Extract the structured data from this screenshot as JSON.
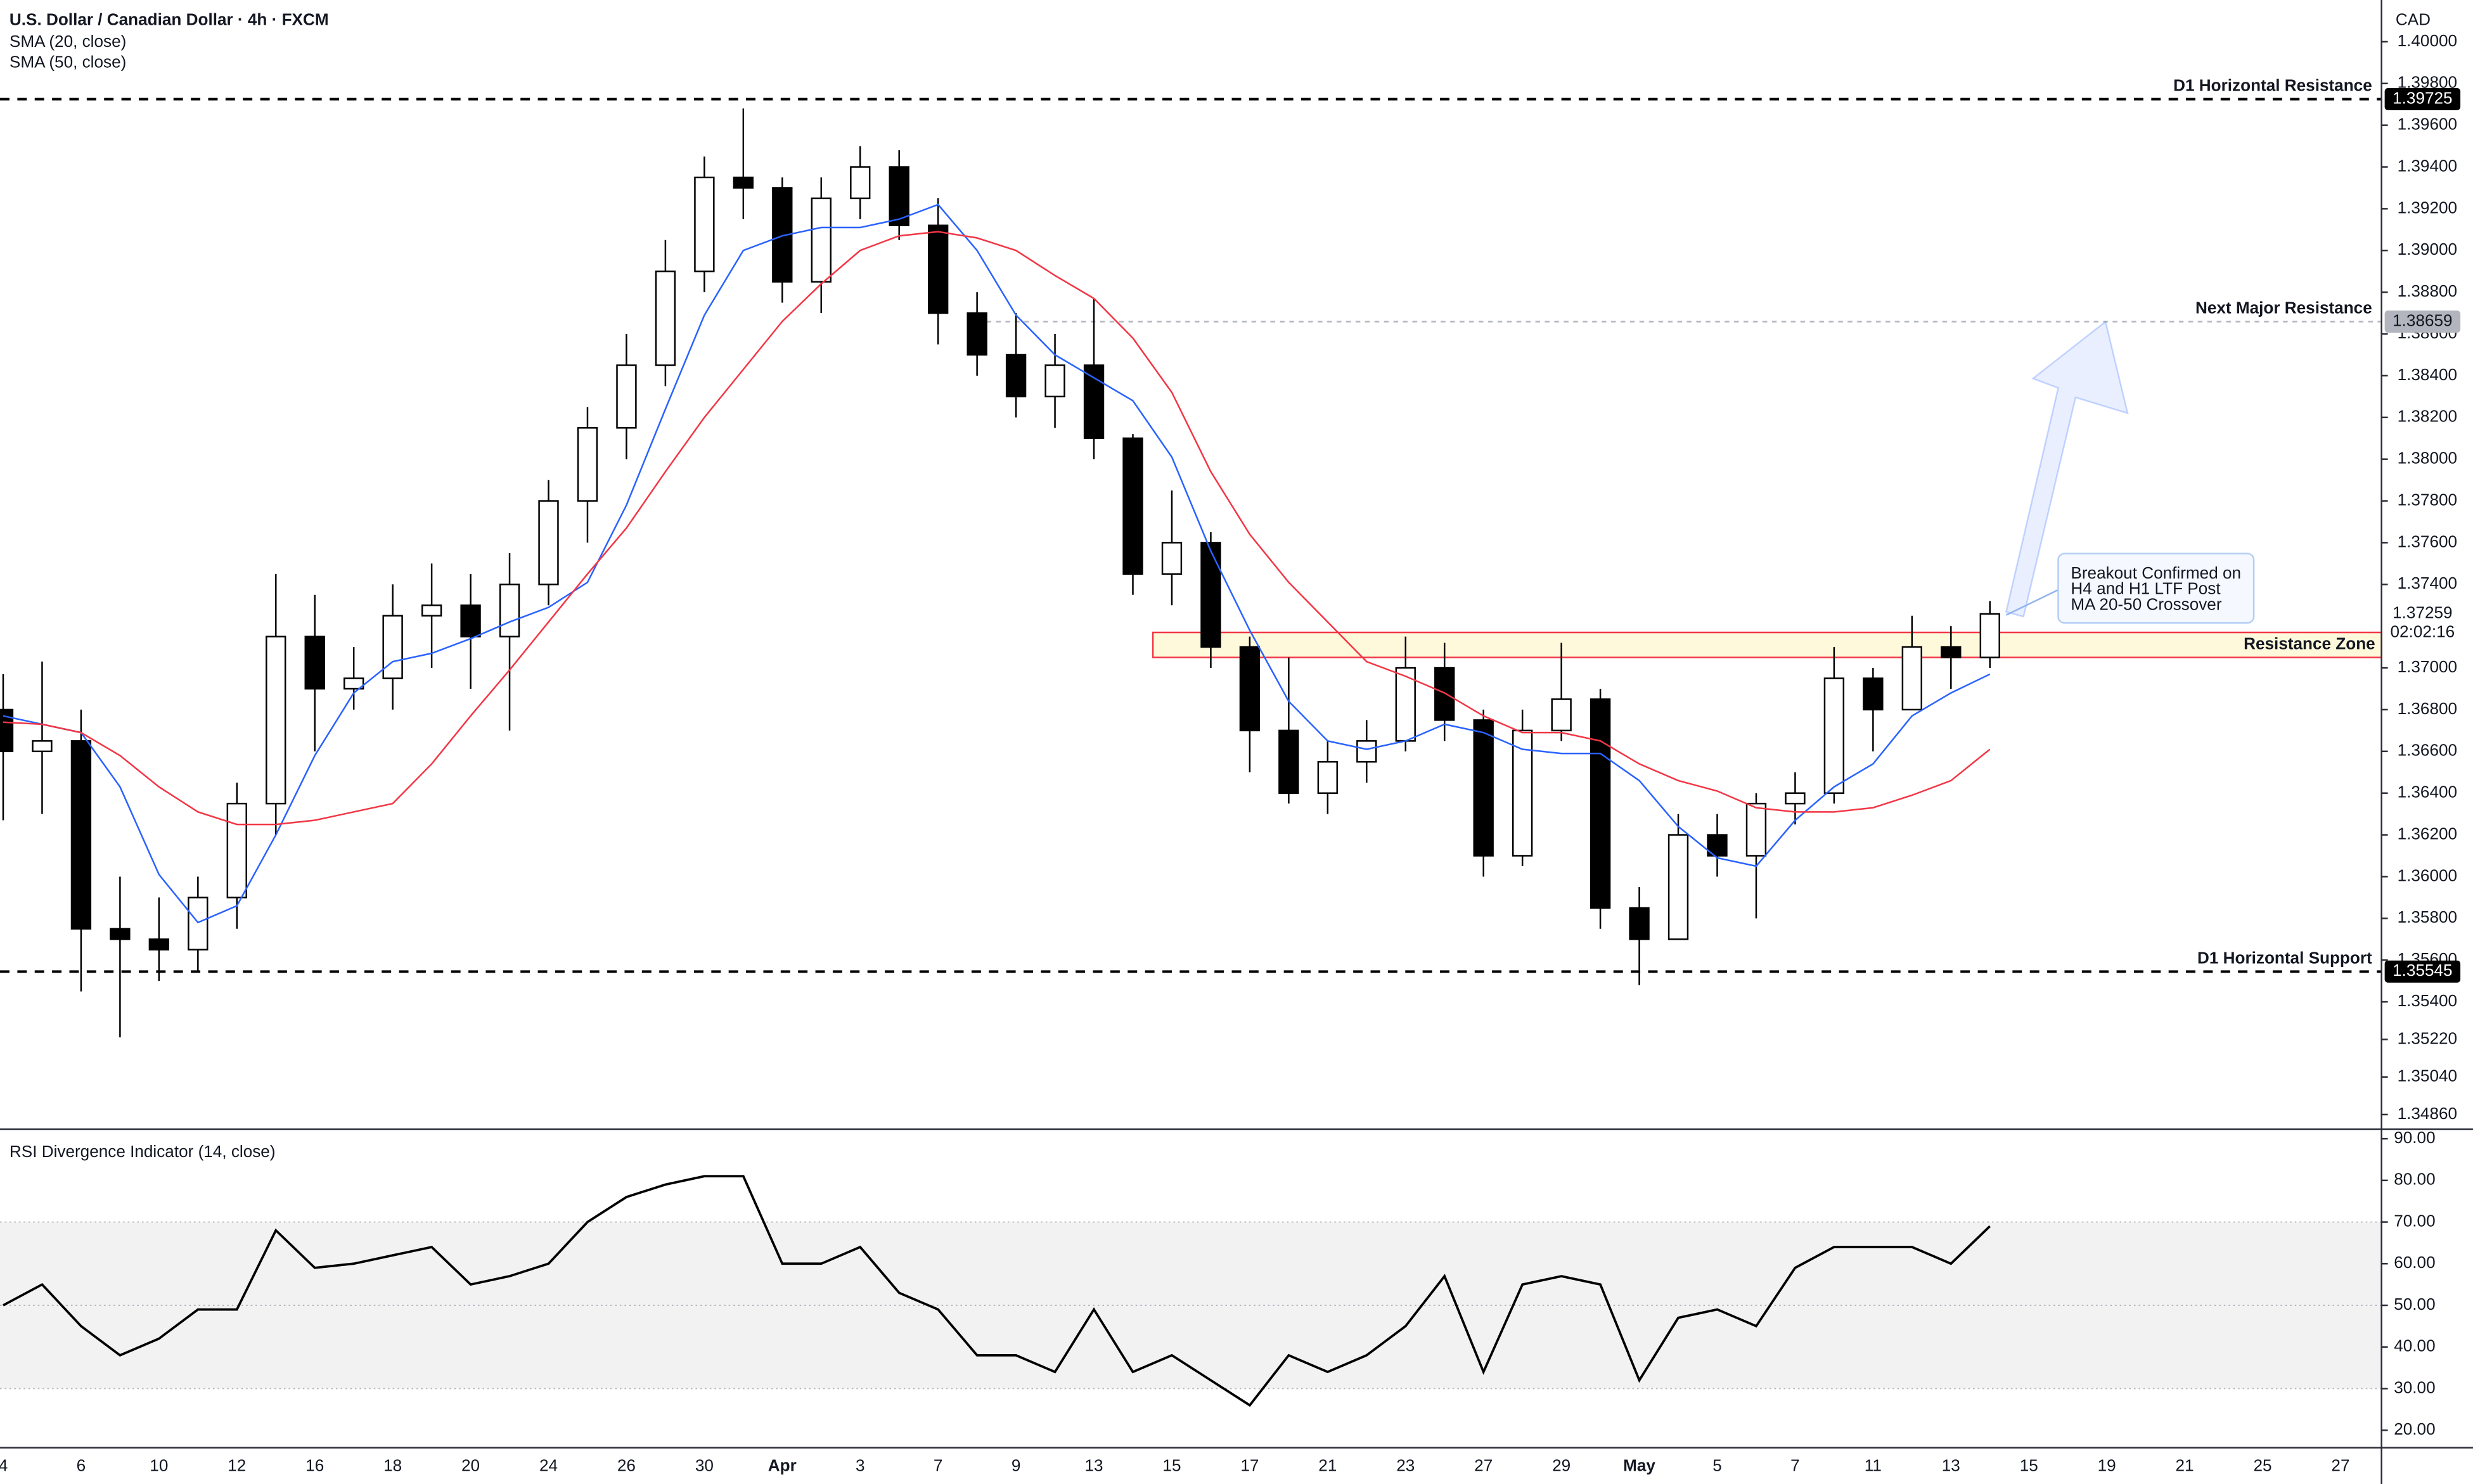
{
  "chart_data": [
    {
      "type": "candlestick",
      "title": "U.S. Dollar / Canadian Dollar · 4h · FXCM",
      "currency": "CAD",
      "countdown": "02:02:16",
      "categories": [
        "4",
        null,
        "6",
        null,
        "10",
        null,
        "12",
        null,
        "16",
        null,
        "18",
        null,
        "20",
        null,
        "24",
        null,
        "26",
        null,
        "30",
        null,
        "Apr",
        null,
        "3",
        null,
        "7",
        null,
        "9",
        null,
        "13",
        null,
        "15",
        null,
        "17",
        null,
        "21",
        null,
        "23",
        null,
        "27",
        null,
        "29",
        null,
        "May",
        null,
        "5",
        null,
        "7",
        null,
        "11",
        null,
        "13",
        null,
        "15",
        null,
        "19",
        null,
        "21",
        null,
        "25",
        null,
        "27"
      ],
      "candles": [
        [
          1.368,
          1.3697,
          1.3627,
          1.366
        ],
        [
          1.366,
          1.3703,
          1.363,
          1.3665
        ],
        [
          1.3665,
          1.368,
          1.3545,
          1.3575
        ],
        [
          1.3575,
          1.36,
          1.3523,
          1.357
        ],
        [
          1.357,
          1.359,
          1.355,
          1.3565
        ],
        [
          1.3565,
          1.36,
          1.3555,
          1.359
        ],
        [
          1.359,
          1.3645,
          1.3575,
          1.3635
        ],
        [
          1.3635,
          1.3745,
          1.362,
          1.3715
        ],
        [
          1.3715,
          1.3735,
          1.366,
          1.369
        ],
        [
          1.369,
          1.371,
          1.368,
          1.3695
        ],
        [
          1.3695,
          1.374,
          1.368,
          1.3725
        ],
        [
          1.3725,
          1.375,
          1.37,
          1.373
        ],
        [
          1.373,
          1.3745,
          1.369,
          1.3715
        ],
        [
          1.3715,
          1.3755,
          1.367,
          1.374
        ],
        [
          1.374,
          1.379,
          1.373,
          1.378
        ],
        [
          1.378,
          1.3825,
          1.376,
          1.3815
        ],
        [
          1.3815,
          1.386,
          1.38,
          1.3845
        ],
        [
          1.3845,
          1.3905,
          1.3835,
          1.389
        ],
        [
          1.389,
          1.3945,
          1.388,
          1.3935
        ],
        [
          1.3935,
          1.3968,
          1.3915,
          1.393
        ],
        [
          1.393,
          1.3935,
          1.3875,
          1.3885
        ],
        [
          1.3885,
          1.3935,
          1.387,
          1.3925
        ],
        [
          1.3925,
          1.395,
          1.3915,
          1.394
        ],
        [
          1.394,
          1.3948,
          1.3905,
          1.3912
        ],
        [
          1.3912,
          1.3925,
          1.3855,
          1.387
        ],
        [
          1.387,
          1.388,
          1.384,
          1.385
        ],
        [
          1.385,
          1.387,
          1.382,
          1.383
        ],
        [
          1.383,
          1.386,
          1.3815,
          1.3845
        ],
        [
          1.3845,
          1.3877,
          1.38,
          1.381
        ],
        [
          1.381,
          1.3812,
          1.3735,
          1.3745
        ],
        [
          1.3745,
          1.3785,
          1.373,
          1.376
        ],
        [
          1.376,
          1.3765,
          1.37,
          1.371
        ],
        [
          1.371,
          1.3715,
          1.365,
          1.367
        ],
        [
          1.367,
          1.3705,
          1.3635,
          1.364
        ],
        [
          1.364,
          1.3665,
          1.363,
          1.3655
        ],
        [
          1.3655,
          1.3675,
          1.3645,
          1.3665
        ],
        [
          1.3665,
          1.3715,
          1.366,
          1.37
        ],
        [
          1.37,
          1.3712,
          1.3665,
          1.3675
        ],
        [
          1.3675,
          1.368,
          1.36,
          1.361
        ],
        [
          1.361,
          1.368,
          1.3605,
          1.367
        ],
        [
          1.367,
          1.3712,
          1.3665,
          1.3685
        ],
        [
          1.3685,
          1.369,
          1.3575,
          1.3585
        ],
        [
          1.3585,
          1.3595,
          1.3548,
          1.357
        ],
        [
          1.357,
          1.363,
          1.357,
          1.362
        ],
        [
          1.362,
          1.363,
          1.36,
          1.361
        ],
        [
          1.361,
          1.364,
          1.358,
          1.3635
        ],
        [
          1.3635,
          1.365,
          1.3625,
          1.364
        ],
        [
          1.364,
          1.371,
          1.3635,
          1.3695
        ],
        [
          1.3695,
          1.37,
          1.366,
          1.368
        ],
        [
          1.368,
          1.3725,
          1.368,
          1.371
        ],
        [
          1.371,
          1.372,
          1.369,
          1.3705
        ],
        [
          1.3705,
          1.3732,
          1.37,
          1.37259
        ],
        null,
        null,
        null,
        null,
        null,
        null,
        null,
        null,
        null
      ],
      "colors": {
        "up": "#ffffff",
        "down": "#000000",
        "wick": "#000000"
      },
      "series": [
        {
          "name": "SMA (20, close)",
          "color": "#2962ff",
          "values": [
            1.3677,
            1.3673,
            1.3669,
            1.3643,
            1.3601,
            1.3578,
            1.3586,
            1.362,
            1.3658,
            1.3688,
            1.3703,
            1.3707,
            1.3714,
            1.3722,
            1.3729,
            1.3741,
            1.3778,
            1.3824,
            1.3869,
            1.39,
            1.3907,
            1.3911,
            1.3911,
            1.3915,
            1.3922,
            1.39,
            1.3869,
            1.385,
            1.3839,
            1.3828,
            1.3801,
            1.3756,
            1.3718,
            1.3684,
            1.3665,
            1.3661,
            1.3665,
            1.3673,
            1.3669,
            1.3661,
            1.3659,
            1.3659,
            1.3646,
            1.3624,
            1.3609,
            1.3605,
            1.3627,
            1.3643,
            1.3654,
            1.3677,
            1.3688,
            1.3697,
            null,
            null,
            null,
            null,
            null,
            null,
            null,
            null,
            null
          ]
        },
        {
          "name": "SMA (50, close)",
          "color": "#f23645",
          "values": [
            1.3674,
            1.3673,
            1.3669,
            1.3658,
            1.3643,
            1.3631,
            1.3625,
            1.3625,
            1.3627,
            1.3631,
            1.3635,
            1.3654,
            1.3677,
            1.3699,
            1.3722,
            1.3745,
            1.3767,
            1.3794,
            1.382,
            1.3843,
            1.3866,
            1.3884,
            1.39,
            1.3907,
            1.3909,
            1.3906,
            1.39,
            1.3888,
            1.3877,
            1.3858,
            1.3832,
            1.3794,
            1.3764,
            1.3741,
            1.3722,
            1.3703,
            1.3696,
            1.3688,
            1.3677,
            1.3669,
            1.3669,
            1.3665,
            1.3654,
            1.3646,
            1.3641,
            1.3633,
            1.3631,
            1.3631,
            1.3633,
            1.3639,
            1.3646,
            1.3661,
            null,
            null,
            null,
            null,
            null,
            null,
            null,
            null,
            null
          ]
        }
      ],
      "ylim": [
        1.3479,
        1.402
      ],
      "yticks": [
        {
          "value": 1.4,
          "label": "1.40000"
        },
        {
          "value": 1.398,
          "label": "1.39800"
        },
        {
          "value": 1.396,
          "label": "1.39600"
        },
        {
          "value": 1.394,
          "label": "1.39400"
        },
        {
          "value": 1.392,
          "label": "1.39200"
        },
        {
          "value": 1.39,
          "label": "1.39000"
        },
        {
          "value": 1.388,
          "label": "1.38800"
        },
        {
          "value": 1.386,
          "label": "1.38600"
        },
        {
          "value": 1.384,
          "label": "1.38400"
        },
        {
          "value": 1.382,
          "label": "1.38200"
        },
        {
          "value": 1.38,
          "label": "1.38000"
        },
        {
          "value": 1.378,
          "label": "1.37800"
        },
        {
          "value": 1.376,
          "label": "1.37600"
        },
        {
          "value": 1.374,
          "label": "1.37400"
        },
        {
          "value": 1.37,
          "label": "1.37000"
        },
        {
          "value": 1.368,
          "label": "1.36800"
        },
        {
          "value": 1.366,
          "label": "1.36600"
        },
        {
          "value": 1.364,
          "label": "1.36400"
        },
        {
          "value": 1.362,
          "label": "1.36200"
        },
        {
          "value": 1.36,
          "label": "1.36000"
        },
        {
          "value": 1.358,
          "label": "1.35800"
        },
        {
          "value": 1.356,
          "label": "1.35600"
        },
        {
          "value": 1.354,
          "label": "1.35400"
        },
        {
          "value": 1.3522,
          "label": "1.35220"
        },
        {
          "value": 1.3504,
          "label": "1.35040"
        },
        {
          "value": 1.3486,
          "label": "1.34860"
        }
      ],
      "levels": [
        {
          "label": "D1 Horizontal Resistance",
          "value": 1.39725,
          "color": "#000000"
        },
        {
          "label": "Next Major Resistance",
          "value": 1.38659,
          "color": "#b2b5be"
        },
        {
          "label": "D1 Horizontal Support",
          "value": 1.35545,
          "color": "#000000"
        }
      ],
      "zone": {
        "label": "Resistance Zone",
        "from": 1.3705,
        "to": 1.3717,
        "color": "#f23645"
      },
      "annotation": [
        "Breakout Confirmed on",
        "H4 and H1 LTF Post",
        "MA 20-50 Crossover"
      ]
    },
    {
      "type": "line",
      "title": "RSI Divergence Indicator (14, close)",
      "color": "#000000",
      "values": [
        50,
        55,
        45,
        38,
        42,
        49,
        49,
        68,
        59,
        60,
        62,
        64,
        55,
        57,
        60,
        70,
        76,
        79,
        81,
        81,
        60,
        60,
        64,
        53,
        49,
        38,
        38,
        34,
        49,
        34,
        38,
        32,
        26,
        38,
        34,
        38,
        45,
        57,
        34,
        55,
        57,
        55,
        32,
        47,
        49,
        45,
        59,
        64,
        64,
        64,
        60,
        69,
        null,
        null,
        null,
        null,
        null,
        null,
        null,
        null,
        null
      ],
      "ylim": [
        15.8,
        92.3
      ],
      "yticks": [
        {
          "value": 90,
          "label": "90.00"
        },
        {
          "value": 80,
          "label": "80.00"
        },
        {
          "value": 70,
          "label": "70.00"
        },
        {
          "value": 60,
          "label": "60.00"
        },
        {
          "value": 50,
          "label": "50.00"
        },
        {
          "value": 40,
          "label": "40.00"
        },
        {
          "value": 30,
          "label": "30.00"
        },
        {
          "value": 20,
          "label": "20.00"
        }
      ],
      "bands": {
        "upper": 70,
        "middle": 50,
        "lower": 30
      }
    }
  ]
}
